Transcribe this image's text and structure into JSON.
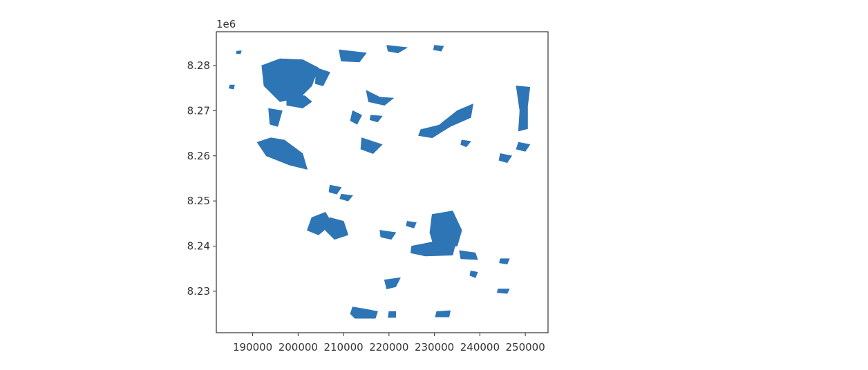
{
  "chart_data": {
    "type": "map",
    "geometry": "polygons",
    "title": "",
    "xlabel": "",
    "ylabel": "",
    "y_offset_label": "1e6",
    "xlim": [
      182000,
      255000
    ],
    "ylim": [
      8.2208,
      8.2875
    ],
    "x_ticks": [
      190000,
      200000,
      210000,
      220000,
      230000,
      240000,
      250000
    ],
    "x_tick_labels": [
      "190000",
      "200000",
      "210000",
      "220000",
      "230000",
      "240000",
      "250000"
    ],
    "y_ticks": [
      8.23,
      8.24,
      8.25,
      8.26,
      8.27,
      8.28
    ],
    "y_tick_labels": [
      "8.23",
      "8.24",
      "8.25",
      "8.26",
      "8.27",
      "8.28"
    ],
    "grid": false,
    "fill_color": "#2E75B6",
    "polygons": [
      {
        "name": "nw-cluster",
        "points": [
          [
            192000,
            8.28
          ],
          [
            196000,
            8.2815
          ],
          [
            201000,
            8.2813
          ],
          [
            204500,
            8.2795
          ],
          [
            203000,
            8.2755
          ],
          [
            200500,
            8.273
          ],
          [
            196000,
            8.272
          ],
          [
            192500,
            8.2755
          ]
        ]
      },
      {
        "name": "nw-cluster-lower",
        "points": [
          [
            197500,
            8.2735
          ],
          [
            201500,
            8.2733
          ],
          [
            203000,
            8.272
          ],
          [
            201000,
            8.2706
          ],
          [
            197500,
            8.2712
          ]
        ]
      },
      {
        "name": "nw-east-lobe",
        "points": [
          [
            204000,
            8.2795
          ],
          [
            207000,
            8.2785
          ],
          [
            205500,
            8.2755
          ],
          [
            203800,
            8.276
          ]
        ]
      },
      {
        "name": "w-band",
        "points": [
          [
            191000,
            8.263
          ],
          [
            193000,
            8.26
          ],
          [
            198000,
            8.258
          ],
          [
            202000,
            8.257
          ],
          [
            201000,
            8.2605
          ],
          [
            197000,
            8.2635
          ],
          [
            194000,
            8.264
          ]
        ]
      },
      {
        "name": "w-scatter",
        "points": [
          [
            193500,
            8.2705
          ],
          [
            196500,
            8.27
          ],
          [
            195500,
            8.2665
          ],
          [
            193800,
            8.267
          ]
        ]
      },
      {
        "name": "mid-belt",
        "points": [
          [
            212000,
            8.27
          ],
          [
            214000,
            8.269
          ],
          [
            213000,
            8.267
          ],
          [
            211500,
            8.2678
          ]
        ]
      },
      {
        "name": "mid-south",
        "points": [
          [
            214000,
            8.264
          ],
          [
            218500,
            8.2625
          ],
          [
            216500,
            8.2605
          ],
          [
            213800,
            8.2615
          ]
        ]
      },
      {
        "name": "n-center",
        "points": [
          [
            209000,
            8.2835
          ],
          [
            215000,
            8.2828
          ],
          [
            213500,
            8.2808
          ],
          [
            209500,
            8.281
          ]
        ]
      },
      {
        "name": "n-right",
        "points": [
          [
            219500,
            8.2845
          ],
          [
            224000,
            8.284
          ],
          [
            222000,
            8.2828
          ],
          [
            219800,
            8.2832
          ]
        ]
      },
      {
        "name": "n-small",
        "points": [
          [
            230000,
            8.2845
          ],
          [
            232000,
            8.2843
          ],
          [
            231500,
            8.2832
          ],
          [
            229800,
            8.2835
          ]
        ]
      },
      {
        "name": "center-arm",
        "points": [
          [
            215000,
            8.2745
          ],
          [
            218000,
            8.273
          ],
          [
            221000,
            8.2728
          ],
          [
            219000,
            8.2712
          ],
          [
            215500,
            8.272
          ]
        ]
      },
      {
        "name": "center-bit",
        "points": [
          [
            216000,
            8.269
          ],
          [
            218500,
            8.2688
          ],
          [
            217500,
            8.2675
          ],
          [
            215800,
            8.268
          ]
        ]
      },
      {
        "name": "e-center",
        "points": [
          [
            227000,
            8.2658
          ],
          [
            231000,
            8.2668
          ],
          [
            235000,
            8.27
          ],
          [
            238500,
            8.2715
          ],
          [
            238000,
            8.2685
          ],
          [
            233500,
            8.2665
          ],
          [
            229500,
            8.264
          ],
          [
            226500,
            8.2645
          ]
        ]
      },
      {
        "name": "e-center-bit",
        "points": [
          [
            236000,
            8.2635
          ],
          [
            238000,
            8.2632
          ],
          [
            237000,
            8.262
          ],
          [
            235800,
            8.2625
          ]
        ]
      },
      {
        "name": "far-e-column",
        "points": [
          [
            248000,
            8.2755
          ],
          [
            251000,
            8.2752
          ],
          [
            250500,
            8.271
          ],
          [
            250500,
            8.266
          ],
          [
            248500,
            8.2655
          ],
          [
            248800,
            8.27
          ]
        ]
      },
      {
        "name": "far-e-lower",
        "points": [
          [
            248500,
            8.263
          ],
          [
            251000,
            8.2625
          ],
          [
            250000,
            8.261
          ],
          [
            248000,
            8.2615
          ]
        ]
      },
      {
        "name": "far-e-bits",
        "points": [
          [
            244500,
            8.2605
          ],
          [
            247000,
            8.26
          ],
          [
            246000,
            8.2585
          ],
          [
            244200,
            8.259
          ]
        ]
      },
      {
        "name": "sw-cluster-a",
        "points": [
          [
            203000,
            8.2463
          ],
          [
            206000,
            8.2475
          ],
          [
            207500,
            8.245
          ],
          [
            204500,
            8.2425
          ],
          [
            202000,
            8.2435
          ]
        ]
      },
      {
        "name": "sw-cluster-b",
        "points": [
          [
            207000,
            8.2463
          ],
          [
            210000,
            8.2455
          ],
          [
            211000,
            8.2425
          ],
          [
            208000,
            8.2415
          ],
          [
            206000,
            8.2435
          ]
        ]
      },
      {
        "name": "mid-low",
        "points": [
          [
            207000,
            8.2535
          ],
          [
            209500,
            8.253
          ],
          [
            208500,
            8.2515
          ],
          [
            206800,
            8.252
          ]
        ]
      },
      {
        "name": "mid-low-2",
        "points": [
          [
            209500,
            8.2515
          ],
          [
            212000,
            8.2512
          ],
          [
            211000,
            8.25
          ],
          [
            209200,
            8.2505
          ]
        ]
      },
      {
        "name": "s-cluster-main",
        "points": [
          [
            229500,
            8.247
          ],
          [
            234000,
            8.2478
          ],
          [
            236000,
            8.2435
          ],
          [
            235000,
            8.24
          ],
          [
            230000,
            8.2395
          ],
          [
            229000,
            8.243
          ]
        ]
      },
      {
        "name": "s-cluster-west",
        "points": [
          [
            225000,
            8.24
          ],
          [
            230000,
            8.241
          ],
          [
            234500,
            8.24
          ],
          [
            234000,
            8.238
          ],
          [
            228000,
            8.2378
          ],
          [
            224800,
            8.2385
          ]
        ]
      },
      {
        "name": "s-cluster-east",
        "points": [
          [
            235500,
            8.239
          ],
          [
            239000,
            8.2385
          ],
          [
            239500,
            8.237
          ],
          [
            235800,
            8.2372
          ]
        ]
      },
      {
        "name": "s-mid-bits",
        "points": [
          [
            218000,
            8.2435
          ],
          [
            221500,
            8.243
          ],
          [
            220500,
            8.2415
          ],
          [
            218200,
            8.242
          ]
        ]
      },
      {
        "name": "s-mid-bits-2",
        "points": [
          [
            224000,
            8.2455
          ],
          [
            226000,
            8.2452
          ],
          [
            225500,
            8.244
          ],
          [
            223800,
            8.2445
          ]
        ]
      },
      {
        "name": "s-small-a",
        "points": [
          [
            219000,
            8.2325
          ],
          [
            222500,
            8.233
          ],
          [
            221500,
            8.231
          ],
          [
            219500,
            8.2305
          ]
        ]
      },
      {
        "name": "s-small-b",
        "points": [
          [
            238000,
            8.2345
          ],
          [
            239500,
            8.2342
          ],
          [
            239000,
            8.233
          ],
          [
            237800,
            8.2335
          ]
        ]
      },
      {
        "name": "se-small",
        "points": [
          [
            244000,
            8.2305
          ],
          [
            246500,
            8.2305
          ],
          [
            246000,
            8.2295
          ],
          [
            243800,
            8.2297
          ]
        ]
      },
      {
        "name": "se-tiny",
        "points": [
          [
            244500,
            8.2372
          ],
          [
            246500,
            8.2372
          ],
          [
            246000,
            8.236
          ],
          [
            244300,
            8.2363
          ]
        ]
      },
      {
        "name": "bottom-a",
        "points": [
          [
            212000,
            8.2265
          ],
          [
            215000,
            8.226
          ],
          [
            217500,
            8.2255
          ],
          [
            217000,
            8.224
          ],
          [
            212500,
            8.224
          ],
          [
            211500,
            8.225
          ]
        ]
      },
      {
        "name": "bottom-b",
        "points": [
          [
            220000,
            8.2255
          ],
          [
            221500,
            8.2255
          ],
          [
            221500,
            8.2242
          ],
          [
            219800,
            8.2242
          ]
        ]
      },
      {
        "name": "bottom-c",
        "points": [
          [
            230500,
            8.2255
          ],
          [
            233500,
            8.2257
          ],
          [
            233200,
            8.2243
          ],
          [
            230200,
            8.2243
          ]
        ]
      },
      {
        "name": "w-edge-dot",
        "points": [
          [
            185000,
            8.2757
          ],
          [
            186000,
            8.2757
          ],
          [
            185800,
            8.2748
          ],
          [
            184800,
            8.275
          ]
        ]
      },
      {
        "name": "nw-dot",
        "points": [
          [
            186500,
            8.2832
          ],
          [
            187500,
            8.2833
          ],
          [
            187300,
            8.2826
          ],
          [
            186400,
            8.2827
          ]
        ]
      }
    ]
  }
}
